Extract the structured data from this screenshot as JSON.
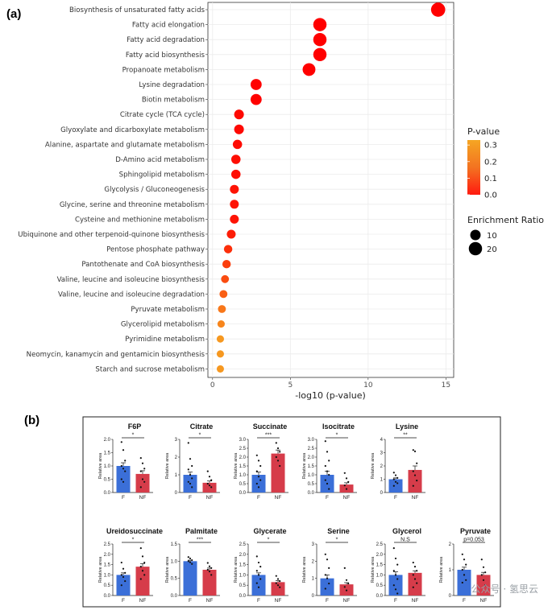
{
  "chart_data": [
    {
      "panel": "(a)",
      "type": "scatter",
      "subtype": "bubble",
      "xlabel": "-log10 (p-value)",
      "xlim": [
        0,
        15
      ],
      "xticks": [
        0,
        5,
        10,
        15
      ],
      "y_categories": [
        "Biosynthesis of unsaturated fatty acids",
        "Fatty acid elongation",
        "Fatty acid degradation",
        "Fatty acid biosynthesis",
        "Propanoate metabolism",
        "Lysine degradation",
        "Biotin metabolism",
        "Citrate cycle (TCA cycle)",
        "Glyoxylate and dicarboxylate metabolism",
        "Alanine, aspartate and glutamate metabolism",
        "D-Amino acid metabolism",
        "Sphingolipid metabolism",
        "Glycolysis / Gluconeogenesis",
        "Glycine, serine and threonine metabolism",
        "Cysteine and methionine metabolism",
        "Ubiquinone and other terpenoid-quinone biosynthesis",
        "Pentose phosphate pathway",
        "Pantothenate and CoA biosynthesis",
        "Valine, leucine and isoleucine biosynthesis",
        "Valine, leucine and isoleucine degradation",
        "Pyruvate metabolism",
        "Glycerolipid metabolism",
        "Pyrimidine metabolism",
        "Neomycin, kanamycin and gentamicin biosynthesis",
        "Starch and sucrose metabolism"
      ],
      "x_values": [
        14.5,
        6.9,
        6.9,
        6.9,
        6.2,
        2.8,
        2.8,
        1.7,
        1.7,
        1.6,
        1.5,
        1.5,
        1.4,
        1.4,
        1.4,
        1.2,
        1.0,
        0.9,
        0.8,
        0.7,
        0.6,
        0.55,
        0.5,
        0.5,
        0.5
      ],
      "p_values": [
        0.0,
        0.0,
        0.0,
        0.0,
        0.0,
        0.002,
        0.002,
        0.02,
        0.02,
        0.025,
        0.03,
        0.03,
        0.04,
        0.04,
        0.04,
        0.06,
        0.1,
        0.13,
        0.16,
        0.2,
        0.25,
        0.28,
        0.32,
        0.32,
        0.32
      ],
      "enrichment_ratio": [
        24,
        20,
        20,
        20,
        18,
        12,
        12,
        8,
        8,
        7,
        7,
        7,
        6,
        6,
        6,
        6,
        5,
        5,
        4,
        4,
        4,
        3,
        3,
        3,
        3
      ],
      "color_legend": {
        "title": "P-value",
        "ticks": [
          "0.3",
          "0.2",
          "0.1",
          "0.0"
        ],
        "low_color": "#ff0000",
        "high_color": "#f5a623"
      },
      "size_legend": {
        "title": "Enrichment Ratio",
        "ticks": [
          "10",
          "20"
        ]
      }
    },
    {
      "panel": "(b)",
      "type": "bar",
      "ylabel": "Relative area",
      "categories": [
        "F",
        "NF"
      ],
      "colors": {
        "F": "#3b6fd8",
        "NF": "#d63c4a"
      },
      "subplots": [
        {
          "title": "F6P",
          "values": [
            1.0,
            0.7
          ],
          "errors": [
            0.12,
            0.12
          ],
          "ymax": 2.0,
          "yticks": [
            "0.0",
            "0.5",
            "1.0",
            "1.5",
            "2.0"
          ],
          "sig": "*",
          "points_F": [
            1.9,
            1.6,
            1.2,
            1.0,
            0.9,
            0.8,
            0.5,
            0.4
          ],
          "points_NF": [
            1.3,
            1.1,
            0.9,
            0.8,
            0.5,
            0.4,
            0.2
          ]
        },
        {
          "title": "Citrate",
          "values": [
            1.0,
            0.55
          ],
          "errors": [
            0.15,
            0.1
          ],
          "ymax": 3.0,
          "yticks": [
            "0",
            "1",
            "2",
            "3"
          ],
          "sig": "*",
          "points_F": [
            2.8,
            1.9,
            1.5,
            1.3,
            1.0,
            0.8,
            0.6,
            0.5,
            0.3
          ],
          "points_NF": [
            1.2,
            0.9,
            0.7,
            0.5,
            0.4,
            0.3
          ]
        },
        {
          "title": "Succinate",
          "values": [
            1.0,
            2.2
          ],
          "errors": [
            0.15,
            0.2
          ],
          "ymax": 3.0,
          "yticks": [
            "0.0",
            "0.5",
            "1.0",
            "1.5",
            "2.0",
            "2.5",
            "3.0"
          ],
          "sig": "***",
          "points_F": [
            2.1,
            1.8,
            1.5,
            1.2,
            0.9,
            0.7,
            0.5,
            0.3
          ],
          "points_NF": [
            2.8,
            2.5,
            2.3,
            2.0,
            1.8,
            1.5
          ]
        },
        {
          "title": "Isocitrate",
          "values": [
            1.0,
            0.45
          ],
          "errors": [
            0.2,
            0.1
          ],
          "ymax": 3.0,
          "yticks": [
            "0.0",
            "0.5",
            "1.0",
            "1.5",
            "2.0",
            "2.5",
            "3.0"
          ],
          "sig": "*",
          "points_F": [
            2.9,
            2.3,
            1.8,
            1.5,
            1.2,
            1.0,
            0.7,
            0.5,
            0.2
          ],
          "points_NF": [
            1.1,
            0.8,
            0.6,
            0.4,
            0.2
          ]
        },
        {
          "title": "Lysine",
          "values": [
            1.0,
            1.7
          ],
          "errors": [
            0.1,
            0.3
          ],
          "ymax": 4.0,
          "yticks": [
            "0",
            "1",
            "2",
            "3",
            "4"
          ],
          "sig": "**",
          "points_F": [
            1.5,
            1.3,
            1.1,
            1.0,
            0.8,
            0.7,
            0.5
          ],
          "points_NF": [
            3.2,
            3.1,
            2.2,
            1.6,
            1.3,
            0.9,
            0.5
          ]
        },
        {
          "title": "Ureidosuccinate",
          "values": [
            1.0,
            1.4
          ],
          "errors": [
            0.1,
            0.15
          ],
          "ymax": 2.5,
          "yticks": [
            "0.0",
            "0.5",
            "1.0",
            "1.5",
            "2.0",
            "2.5"
          ],
          "sig": "*",
          "points_F": [
            1.6,
            1.3,
            1.1,
            1.0,
            0.9,
            0.7,
            0.5
          ],
          "points_NF": [
            2.3,
            1.9,
            1.6,
            1.4,
            1.2,
            1.0,
            0.8
          ]
        },
        {
          "title": "Palmitate",
          "values": [
            1.0,
            0.75
          ],
          "errors": [
            0.03,
            0.05
          ],
          "ymax": 1.5,
          "yticks": [
            "0.0",
            "0.5",
            "1.0",
            "1.5"
          ],
          "sig": "***",
          "points_F": [
            1.12,
            1.08,
            1.03,
            1.0,
            0.97,
            0.92
          ],
          "points_NF": [
            0.95,
            0.85,
            0.8,
            0.75,
            0.7,
            0.6
          ]
        },
        {
          "title": "Glycerate",
          "values": [
            1.0,
            0.65
          ],
          "errors": [
            0.1,
            0.07
          ],
          "ymax": 2.5,
          "yticks": [
            "0.0",
            "0.5",
            "1.0",
            "1.5",
            "2.0",
            "2.5"
          ],
          "sig": "*",
          "points_F": [
            1.9,
            1.6,
            1.4,
            1.2,
            1.0,
            0.8,
            0.6,
            0.4
          ],
          "points_NF": [
            0.95,
            0.8,
            0.7,
            0.6,
            0.5,
            0.4
          ]
        },
        {
          "title": "Serine",
          "values": [
            1.0,
            0.65
          ],
          "errors": [
            0.2,
            0.1
          ],
          "ymax": 3.0,
          "yticks": [
            "0",
            "1",
            "2",
            "3"
          ],
          "sig": "*",
          "points_F": [
            2.4,
            2.1,
            1.6,
            1.2,
            1.0,
            0.7,
            0.4
          ],
          "points_NF": [
            1.6,
            0.9,
            0.7,
            0.5,
            0.3
          ]
        },
        {
          "title": "Glycerol",
          "values": [
            1.0,
            1.1
          ],
          "errors": [
            0.15,
            0.1
          ],
          "ymax": 2.5,
          "yticks": [
            "0.0",
            "0.5",
            "1.0",
            "1.5",
            "2.0",
            "2.5"
          ],
          "sig": "N.S",
          "points_F": [
            2.3,
            1.8,
            1.5,
            1.2,
            1.0,
            0.8,
            0.5,
            0.3,
            0.1
          ],
          "points_NF": [
            1.6,
            1.4,
            1.2,
            1.0,
            0.8,
            0.6,
            0.4
          ]
        },
        {
          "title": "Pyruvate",
          "values": [
            1.0,
            0.8
          ],
          "errors": [
            0.1,
            0.1
          ],
          "ymax": 2.0,
          "yticks": [
            "0",
            "1",
            "2"
          ],
          "sig": "p=0.053",
          "points_F": [
            1.6,
            1.4,
            1.2,
            1.0,
            0.8,
            0.6,
            0.5
          ],
          "points_NF": [
            1.4,
            1.1,
            0.9,
            0.8,
            0.6,
            0.4
          ]
        }
      ]
    }
  ],
  "watermark": {
    "text": "公众号 · 氢思云"
  }
}
